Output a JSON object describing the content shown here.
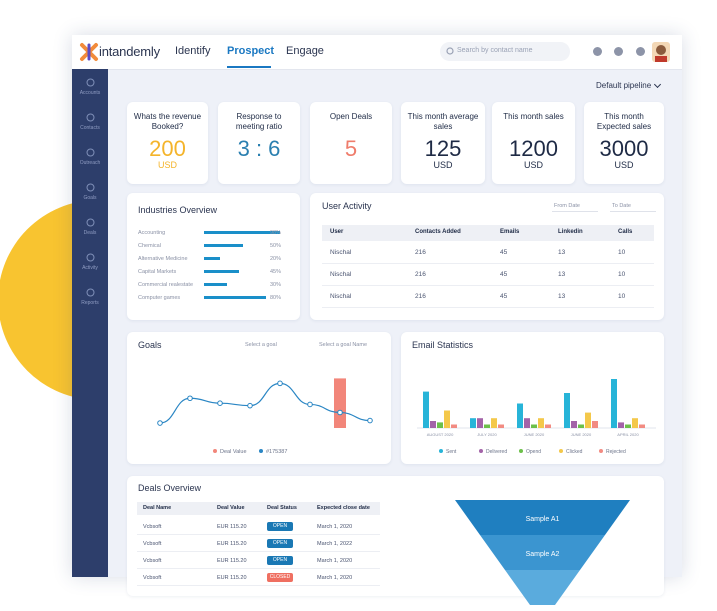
{
  "header": {
    "logo": "intandemly",
    "nav": [
      "Identify",
      "Prospect",
      "Engage"
    ],
    "active": "Prospect",
    "search_placeholder": "Search by contact name"
  },
  "sidebar": [
    "Accounts",
    "Contacts",
    "Outreach",
    "Goals",
    "Deals",
    "Activity",
    "Reports"
  ],
  "pipeline": "Default pipeline",
  "kpis": [
    {
      "label": "Whats the revenue Booked?",
      "value": 200,
      "unit": "USD",
      "color": "#f4b42b"
    },
    {
      "label": "Response to meeting ratio",
      "value": "3 : 6",
      "color": "#2a7fb0"
    },
    {
      "label": "Open Deals",
      "value": 5,
      "color": "#ef7c6b"
    },
    {
      "label": "This month average sales",
      "value": 125,
      "unit": "USD",
      "color": "#1e2a45"
    },
    {
      "label": "This month sales",
      "value": 1200,
      "unit": "USD",
      "color": "#1e2a45"
    },
    {
      "label": "This month Expected sales",
      "value": 3000,
      "unit": "USD",
      "color": "#1e2a45"
    }
  ],
  "industries": {
    "title": "Industries Overview",
    "items": [
      "Accounting",
      "Chemical",
      "Alternative Medicine",
      "Capital Markets",
      "Commercial realestate",
      "Computer games"
    ],
    "values": [
      98,
      50,
      20,
      45,
      30,
      80
    ],
    "value_labels": [
      "98%",
      "50%",
      "20%",
      "45%",
      "30%",
      "80%"
    ],
    "color": "#1a8fc9"
  },
  "user_activity": {
    "title": "User Activity",
    "filters": [
      "From Date",
      "To Date"
    ],
    "columns": [
      "User",
      "Contacts Added",
      "Emails",
      "Linkedin",
      "Calls"
    ],
    "rows": [
      [
        "Nischal",
        216,
        45,
        13,
        10
      ],
      [
        "Nischal",
        216,
        45,
        13,
        10
      ],
      [
        "Nischal",
        216,
        45,
        13,
        10
      ]
    ]
  },
  "goals": {
    "title": "Goals",
    "selects": [
      "Select a goal",
      "Select a goal Name"
    ],
    "chart": {
      "type": "line",
      "ylim": [
        0,
        100
      ],
      "series": [
        {
          "name": "Deal Value",
          "color": "#f2867a",
          "type": "bar",
          "values": [
            null,
            null,
            null,
            null,
            null,
            null,
            80,
            null
          ]
        },
        {
          "name": "#175387",
          "color": "#2a86c4",
          "type": "line",
          "values": [
            8,
            48,
            40,
            36,
            72,
            38,
            25,
            12
          ]
        }
      ]
    }
  },
  "email": {
    "title": "Email Statistics",
    "chart": {
      "type": "bar",
      "ylim": [
        0,
        100
      ],
      "categories": [
        "AUGUST 2020",
        "JULY 2020",
        "JUNE 2020",
        "JUNE 2020",
        "APRIL 2020"
      ],
      "series": [
        {
          "name": "Sent",
          "color": "#27b4d8",
          "values": [
            52,
            14,
            35,
            50,
            70
          ]
        },
        {
          "name": "Delivered",
          "color": "#a363a8",
          "values": [
            10,
            14,
            14,
            10,
            8
          ]
        },
        {
          "name": "Opend",
          "color": "#6cc04a",
          "values": [
            8,
            5,
            5,
            5,
            5
          ]
        },
        {
          "name": "Clicked",
          "color": "#f4c84a",
          "values": [
            25,
            14,
            14,
            22,
            14
          ]
        },
        {
          "name": "Rejected",
          "color": "#f28b82",
          "values": [
            5,
            5,
            5,
            10,
            5
          ]
        }
      ]
    }
  },
  "deals": {
    "title": "Deals Overview",
    "columns": [
      "Deal Name",
      "Deal Value",
      "Deal Status",
      "Expected close date"
    ],
    "rows": [
      [
        "Vcbsoft",
        "EUR 115.20",
        "OPEN",
        "March 1, 2020"
      ],
      [
        "Vcbsoft",
        "EUR 115.20",
        "OPEN",
        "March 1, 2022"
      ],
      [
        "Vcbsoft",
        "EUR 115.20",
        "OPEN",
        "March 1, 2020"
      ],
      [
        "Vcbsoft",
        "EUR 115.20",
        "CLOSED",
        "March 1, 2020"
      ]
    ],
    "status_colors": [
      "#1a78b4",
      "#1a78b4",
      "#1a78b4",
      "#ef6f61"
    ],
    "funnel": [
      "Sample A1",
      "Sample A2"
    ]
  }
}
